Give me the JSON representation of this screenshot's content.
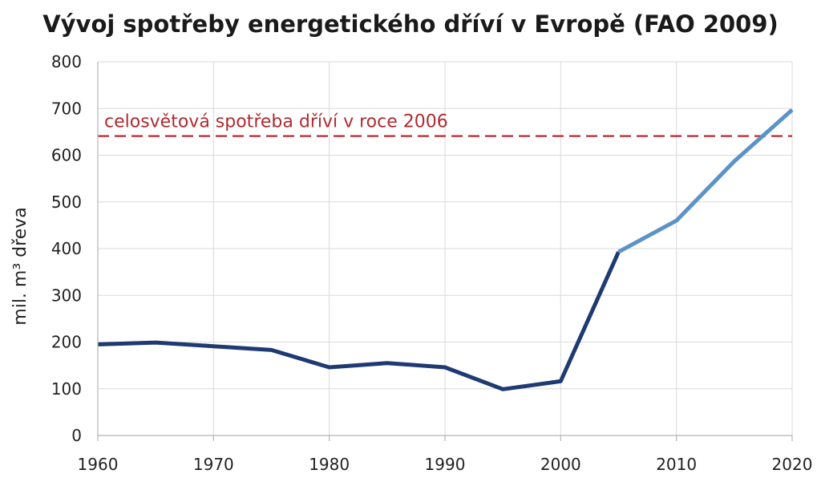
{
  "chart_data": {
    "type": "line",
    "title": "Vývoj spotřeby energetického dříví v Evropě (FAO 2009)",
    "xlabel": "",
    "ylabel": "mil. m³ dřeva",
    "xlim": [
      1960,
      2020
    ],
    "ylim": [
      0,
      800
    ],
    "xticks": [
      1960,
      1970,
      1980,
      1990,
      2000,
      2010,
      2020
    ],
    "yticks": [
      0,
      100,
      200,
      300,
      400,
      500,
      600,
      700,
      800
    ],
    "grid": true,
    "legend": "none",
    "series": [
      {
        "color": "#1f3a73",
        "x": [
          1960,
          1965,
          1970,
          1975,
          1980,
          1985,
          1990,
          1995,
          2000,
          2005
        ],
        "y": [
          195,
          199,
          191,
          183,
          146,
          155,
          146,
          99,
          116,
          393
        ]
      },
      {
        "color": "#5b93c9",
        "x": [
          2005,
          2010,
          2015,
          2020
        ],
        "y": [
          393,
          460,
          587,
          697
        ]
      }
    ],
    "reference_line": {
      "y": 641,
      "label": "celosvětová spotřeba dříví v roce 2006",
      "color": "#c0272d",
      "style": "dashed"
    }
  }
}
